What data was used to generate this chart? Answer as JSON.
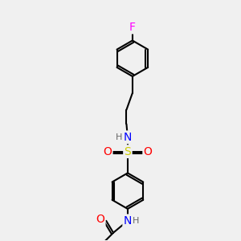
{
  "bg_color": "#f0f0f0",
  "bond_color": "#000000",
  "bond_width": 1.5,
  "atom_colors": {
    "F": "#ff00ff",
    "N": "#0000ff",
    "O": "#ff0000",
    "S": "#cccc00",
    "H": "#666666",
    "C": "#000000"
  },
  "font_size": 9,
  "fig_size": [
    3.0,
    3.0
  ],
  "dpi": 100
}
